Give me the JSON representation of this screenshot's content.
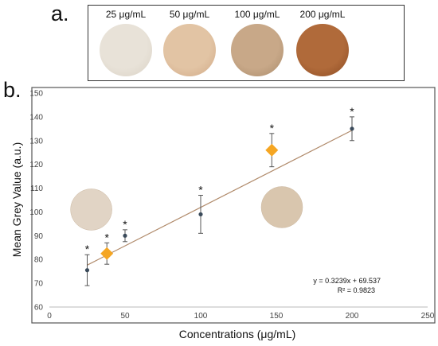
{
  "panel_a": {
    "letter": "a.",
    "swatches": [
      {
        "label": "25 μg/mL",
        "color": "#e8e2d8",
        "edge": "#d9d1c4"
      },
      {
        "label": "50 μg/mL",
        "color": "#e2c4a4",
        "edge": "#d0a886"
      },
      {
        "label": "100 μg/mL",
        "color": "#c8a888",
        "edge": "#a88a6a"
      },
      {
        "label": "200 μg/mL",
        "color": "#b06a3a",
        "edge": "#8a4a22"
      }
    ]
  },
  "chart_data": {
    "type": "scatter",
    "panel_letter": "b.",
    "xlabel": "Concentrations (μg/mL)",
    "ylabel": "Mean Grey Value (a.u.)",
    "xlim": [
      0,
      250
    ],
    "ylim": [
      60,
      150
    ],
    "x_ticks": [
      0,
      50,
      100,
      150,
      200,
      250
    ],
    "y_ticks": [
      60,
      70,
      80,
      90,
      100,
      110,
      120,
      130,
      140,
      150
    ],
    "grid": false,
    "points": [
      {
        "x": 25,
        "y": 75.5,
        "err": 6.5,
        "star": "*"
      },
      {
        "x": 50,
        "y": 90,
        "err": 2.5,
        "star": "*"
      },
      {
        "x": 100,
        "y": 99,
        "err": 8,
        "star": "*"
      },
      {
        "x": 200,
        "y": 135,
        "err": 5,
        "star": "*"
      }
    ],
    "highlight_points": [
      {
        "x": 38,
        "y": 82.5,
        "err": 4.5,
        "star": "*",
        "color": "#f5a623"
      },
      {
        "x": 147,
        "y": 126,
        "err": 7,
        "star": "*",
        "color": "#f5a623"
      }
    ],
    "trendline": {
      "slope": 0.3239,
      "intercept": 69.537,
      "x_range": [
        25,
        200
      ],
      "color": "#b08a6a",
      "equation": "y = 0.3239x + 69.537",
      "r_squared": "R² = 0.9823"
    },
    "inset_swatches": [
      {
        "x": 14,
        "y": 101,
        "color": "#e0d2c2"
      },
      {
        "x": 140,
        "y": 102,
        "color": "#d8c4aa"
      }
    ],
    "point_color": "#3a4a5a"
  }
}
